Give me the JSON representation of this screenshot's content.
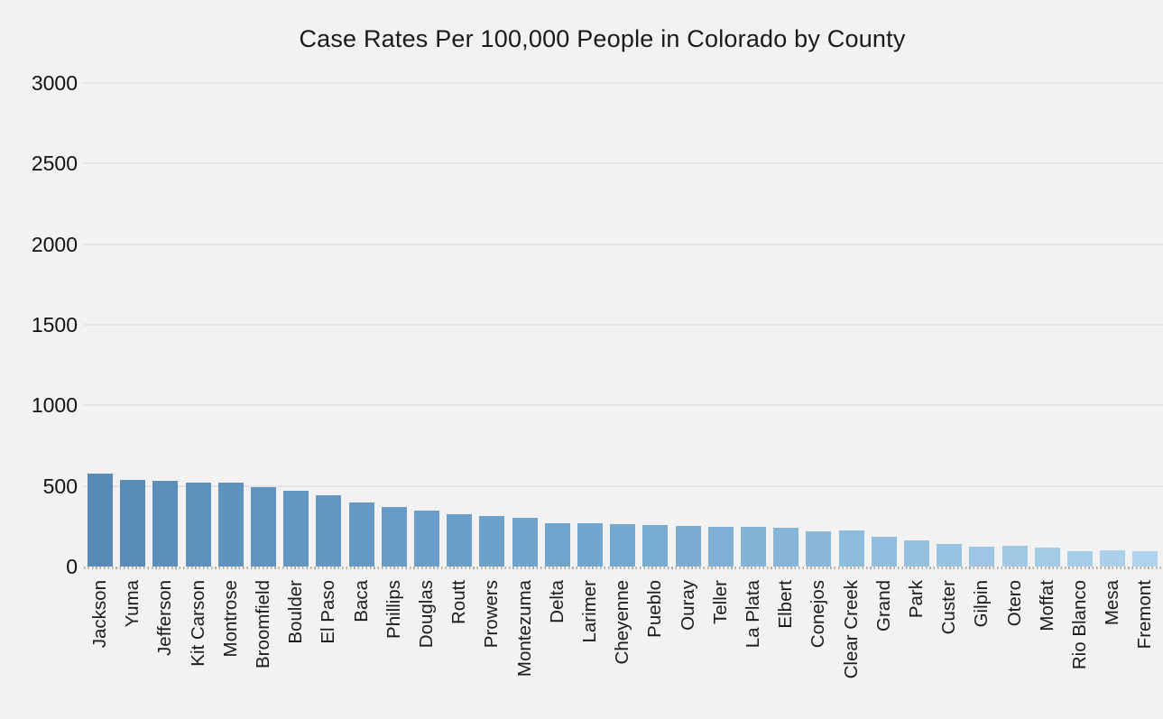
{
  "page": {
    "background_color": "#f2f2f2"
  },
  "chart_data": {
    "type": "bar",
    "title": "Case Rates Per 100,000 People in Colorado by County",
    "xlabel": "",
    "ylabel": "",
    "categories": [
      "Jackson",
      "Yuma",
      "Jefferson",
      "Kit Carson",
      "Montrose",
      "Broomfield",
      "Boulder",
      "El Paso",
      "Baca",
      "Phillips",
      "Douglas",
      "Routt",
      "Prowers",
      "Montezuma",
      "Delta",
      "Larimer",
      "Cheyenne",
      "Pueblo",
      "Ouray",
      "Teller",
      "La Plata",
      "Elbert",
      "Conejos",
      "Clear Creek",
      "Grand",
      "Park",
      "Custer",
      "Gilpin",
      "Otero",
      "Moffat",
      "Rio Blanco",
      "Mesa",
      "Fremont"
    ],
    "values": [
      575,
      540,
      532,
      520,
      518,
      495,
      472,
      440,
      400,
      370,
      348,
      326,
      312,
      302,
      270,
      268,
      262,
      258,
      250,
      245,
      245,
      238,
      220,
      222,
      182,
      165,
      140,
      125,
      128,
      116,
      96,
      98,
      95
    ],
    "ylim": [
      0,
      3000
    ],
    "yticks": [
      0,
      500,
      1000,
      1500,
      2000,
      2500,
      3000
    ],
    "grid": "horizontal-only",
    "legend": "none",
    "bar_orientation": "vertical",
    "x_tick_label_rotation_deg": 90,
    "colors": {
      "background": "#f2f2f2",
      "gridline": "#e3e3e3",
      "axis_dotted_line": "#b2aca3",
      "text": "#1a1a1a",
      "bar_colormap_light": "#aed3ec",
      "bar_colormap_mid": "#74a8d0",
      "bar_colormap_dark": "#588ab8"
    }
  }
}
